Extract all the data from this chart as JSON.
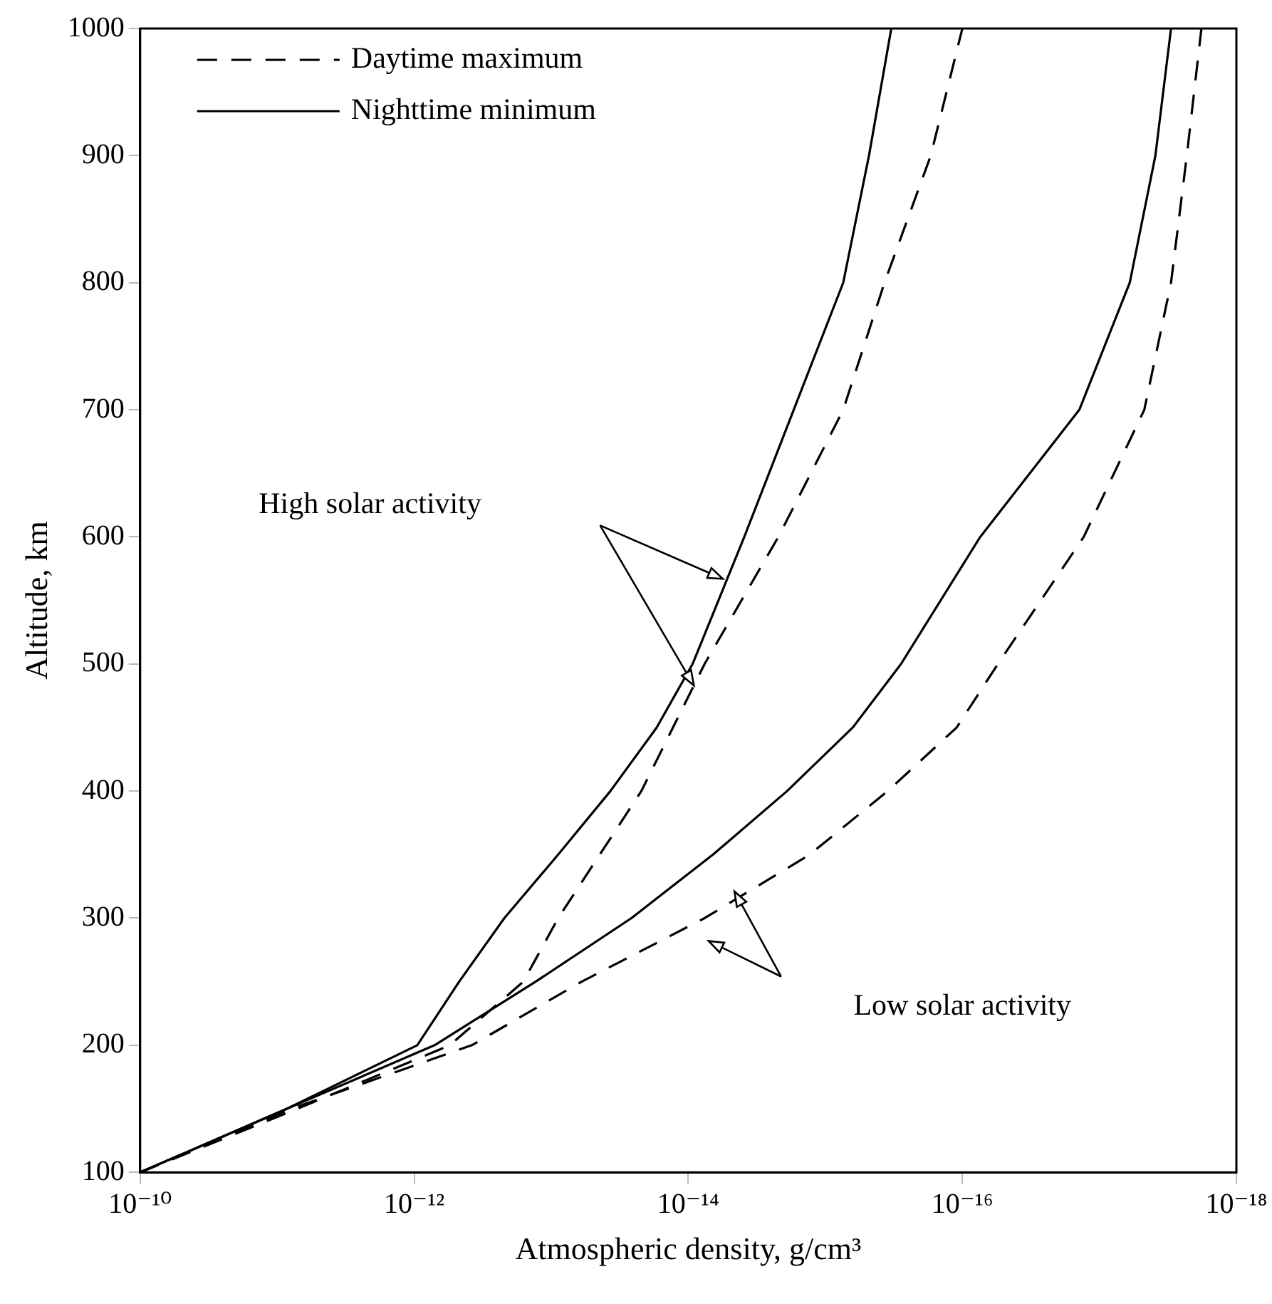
{
  "chart_data": {
    "type": "line",
    "xlabel": "Atmospheric density, g/cm³",
    "ylabel": "Altitude, km",
    "log": "x",
    "grid": false,
    "legend": "top left",
    "marker": "none",
    "xlim": [
      1e-10,
      1e-18
    ],
    "xticks": [
      {
        "value": 1e-10,
        "label": "10⁻¹⁰"
      },
      {
        "value": 1e-12,
        "label": "10⁻¹²"
      },
      {
        "value": 1e-14,
        "label": "10⁻¹⁴"
      },
      {
        "value": 1e-16,
        "label": "10⁻¹⁶"
      },
      {
        "value": 1e-18,
        "label": "10⁻¹⁸"
      }
    ],
    "ylim": [
      100,
      1000
    ],
    "yticks": [
      100,
      200,
      300,
      400,
      500,
      600,
      700,
      800,
      900,
      1000
    ],
    "series": [
      {
        "name": "Daytime maximum",
        "color": "#000000",
        "line_style": "dashed",
        "x": [
          1e-10,
          7.1e-12,
          5.5e-13,
          1.6e-13,
          8.9e-14,
          2.2e-14,
          7.6e-15,
          2.2e-15,
          7.4e-16,
          3.7e-16,
          1.7e-16,
          1e-16
        ],
        "values": [
          100,
          150,
          200,
          250,
          300,
          400,
          500,
          600,
          700,
          800,
          900,
          1000
        ]
      },
      {
        "name": "Nighttime minimum",
        "color": "#000000",
        "line_style": "solid",
        "x": [
          1e-10,
          8.5e-12,
          9.5e-13,
          4.7e-13,
          2.2e-13,
          8.9e-14,
          3.7e-14,
          1.7e-14,
          9.3e-15,
          3.9e-15,
          1.7e-15,
          7.4e-16,
          4.8e-16,
          3.3e-16
        ],
        "values": [
          100,
          150,
          200,
          250,
          300,
          350,
          400,
          450,
          500,
          600,
          700,
          800,
          900,
          1000
        ]
      },
      {
        "color": "#000000",
        "line_style": "dashed",
        "x": [
          1e-10,
          7.9e-12,
          3.8e-13,
          6e-14,
          7.6e-15,
          1.3e-15,
          3.5e-16,
          1.1e-16,
          5.5e-17,
          1.3e-17,
          4.7e-18,
          3e-18,
          2.3e-18,
          1.8e-18
        ],
        "values": [
          100,
          150,
          200,
          250,
          300,
          350,
          400,
          450,
          500,
          600,
          700,
          800,
          900,
          1000
        ]
      },
      {
        "color": "#000000",
        "line_style": "solid",
        "x": [
          1e-10,
          8.5e-12,
          7.1e-13,
          1.3e-13,
          2.6e-14,
          6.6e-15,
          1.9e-15,
          6.3e-16,
          2.8e-16,
          7.4e-17,
          1.4e-17,
          6e-18,
          3.9e-18,
          3e-18
        ],
        "values": [
          100,
          150,
          200,
          250,
          300,
          350,
          400,
          450,
          500,
          600,
          700,
          800,
          900,
          1000
        ]
      }
    ],
    "annotations": [
      "High solar activity",
      "Low solar activity"
    ]
  }
}
